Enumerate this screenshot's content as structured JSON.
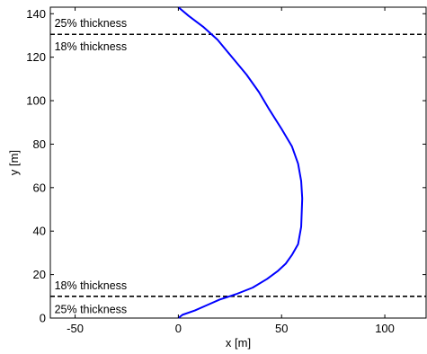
{
  "chart_data": {
    "type": "line",
    "title": "",
    "xlabel": "x [m]",
    "ylabel": "y [m]",
    "xlim": [
      -62,
      120
    ],
    "ylim": [
      0,
      143
    ],
    "xticks": [
      -50,
      0,
      50,
      100
    ],
    "yticks": [
      0,
      20,
      40,
      60,
      80,
      100,
      120,
      140
    ],
    "grid": false,
    "legend": "none",
    "series": [
      {
        "color": "#0000ff",
        "x": [
          0,
          2,
          8,
          14,
          20,
          28,
          36,
          43,
          48,
          52,
          55,
          58,
          59.5,
          60,
          59.5,
          58,
          55,
          50,
          44,
          39,
          33,
          26,
          19,
          12,
          5,
          0
        ],
        "y": [
          0,
          1.5,
          3.5,
          6,
          8.5,
          11,
          14,
          18,
          21.5,
          25,
          29,
          34,
          42,
          55,
          63,
          71,
          79,
          87,
          96,
          104,
          112,
          120,
          128,
          134,
          139,
          143
        ]
      }
    ],
    "reference_lines": [
      {
        "y": 10,
        "style": "dashed",
        "color": "#000000"
      },
      {
        "y": 130.5,
        "style": "dashed",
        "color": "#000000"
      }
    ],
    "annotations": [
      {
        "text": "25% thickness",
        "x": -60,
        "y": 135.8
      },
      {
        "text": "18% thickness",
        "x": -60,
        "y": 125
      },
      {
        "text": "18% thickness",
        "x": -60,
        "y": 15
      },
      {
        "text": "25% thickness",
        "x": -60,
        "y": 4.2
      }
    ]
  }
}
